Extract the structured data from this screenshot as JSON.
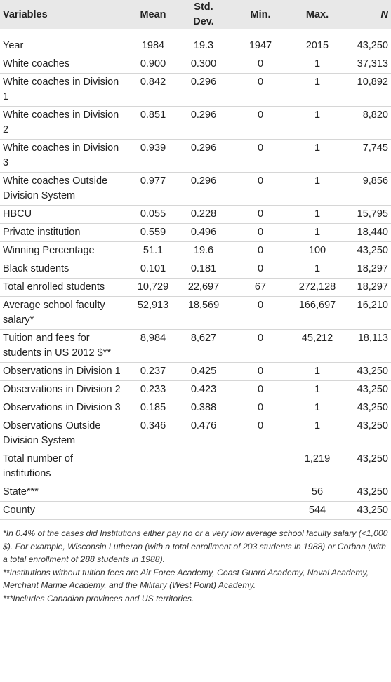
{
  "table": {
    "header": [
      "Variables",
      "Mean",
      "Std. Dev.",
      "Min.",
      "Max.",
      "N"
    ],
    "rows": [
      [
        "Year",
        "1984",
        "19.3",
        "1947",
        "2015",
        "43,250"
      ],
      [
        "White coaches",
        "0.900",
        "0.300",
        "0",
        "1",
        "37,313"
      ],
      [
        "White coaches in Division 1",
        "0.842",
        "0.296",
        "0",
        "1",
        "10,892"
      ],
      [
        "White coaches in Division 2",
        "0.851",
        "0.296",
        "0",
        "1",
        "8,820"
      ],
      [
        "White coaches in Division 3",
        "0.939",
        "0.296",
        "0",
        "1",
        "7,745"
      ],
      [
        "White coaches Outside Division System",
        "0.977",
        "0.296",
        "0",
        "1",
        "9,856"
      ],
      [
        "HBCU",
        "0.055",
        "0.228",
        "0",
        "1",
        "15,795"
      ],
      [
        "Private institution",
        "0.559",
        "0.496",
        "0",
        "1",
        "18,440"
      ],
      [
        "Winning Percentage",
        "51.1",
        "19.6",
        "0",
        "100",
        "43,250"
      ],
      [
        "Black students",
        "0.101",
        "0.181",
        "0",
        "1",
        "18,297"
      ],
      [
        "Total enrolled students",
        "10,729",
        "22,697",
        "67",
        "272,128",
        "18,297"
      ],
      [
        "Average school faculty salary*",
        "52,913",
        "18,569",
        "0",
        "166,697",
        "16,210"
      ],
      [
        "Tuition and fees for students in US 2012 $**",
        "8,984",
        "8,627",
        "0",
        "45,212",
        "18,113"
      ],
      [
        "Observations in Division 1",
        "0.237",
        "0.425",
        "0",
        "1",
        "43,250"
      ],
      [
        "Observations in Division 2",
        "0.233",
        "0.423",
        "0",
        "1",
        "43,250"
      ],
      [
        "Observations in Division 3",
        "0.185",
        "0.388",
        "0",
        "1",
        "43,250"
      ],
      [
        "Observations Outside Division System",
        "0.346",
        "0.476",
        "0",
        "1",
        "43,250"
      ],
      [
        "Total number of institutions",
        null,
        null,
        null,
        "1,219",
        "43,250"
      ],
      [
        "State***",
        null,
        null,
        null,
        "56",
        "43,250"
      ],
      [
        "County",
        null,
        null,
        null,
        "544",
        "43,250"
      ]
    ]
  },
  "footnotes": [
    "*In 0.4% of the cases did Institutions either pay no or a very low average school faculty salary (<1,000 $). For example, Wisconsin Lutheran (with a total enrollment of 203 students in 1988) or Corban (with a total enrollment of 288 students in 1988).",
    "**Institutions without tuition fees are Air Force Academy, Coast Guard Academy, Naval Academy, Merchant Marine Academy, and the Military (West Point) Academy.",
    "***Includes Canadian provinces and US territories."
  ]
}
